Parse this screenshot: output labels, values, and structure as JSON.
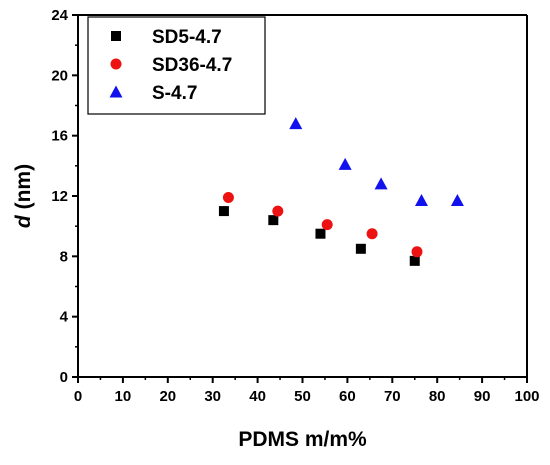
{
  "chart_data": {
    "type": "scatter",
    "xlabel": "PDMS m/m%",
    "ylabel_symbol": "d",
    "ylabel_unit": " (nm)",
    "xlim": [
      0,
      100
    ],
    "ylim": [
      0,
      24
    ],
    "x_ticks": [
      0,
      10,
      20,
      30,
      40,
      50,
      60,
      70,
      80,
      90,
      100
    ],
    "y_ticks": [
      0,
      4,
      8,
      12,
      16,
      20,
      24
    ],
    "grid": false,
    "legend_position": "top-left",
    "series": [
      {
        "name": "SD5-4.7",
        "marker": "square",
        "color": "#000000",
        "points": [
          {
            "x": 32.5,
            "y": 11.0
          },
          {
            "x": 43.5,
            "y": 10.4
          },
          {
            "x": 54.0,
            "y": 9.5
          },
          {
            "x": 63.0,
            "y": 8.5
          },
          {
            "x": 75.0,
            "y": 7.7
          }
        ]
      },
      {
        "name": "SD36-4.7",
        "marker": "circle",
        "color": "#ee1111",
        "points": [
          {
            "x": 33.5,
            "y": 11.9
          },
          {
            "x": 44.5,
            "y": 11.0
          },
          {
            "x": 55.5,
            "y": 10.1
          },
          {
            "x": 65.5,
            "y": 9.5
          },
          {
            "x": 75.5,
            "y": 8.3
          }
        ]
      },
      {
        "name": "S-4.7",
        "marker": "triangle",
        "color": "#1111ee",
        "points": [
          {
            "x": 48.5,
            "y": 16.8
          },
          {
            "x": 59.5,
            "y": 14.1
          },
          {
            "x": 67.5,
            "y": 12.8
          },
          {
            "x": 76.5,
            "y": 11.7
          },
          {
            "x": 84.5,
            "y": 11.7
          }
        ]
      }
    ]
  }
}
